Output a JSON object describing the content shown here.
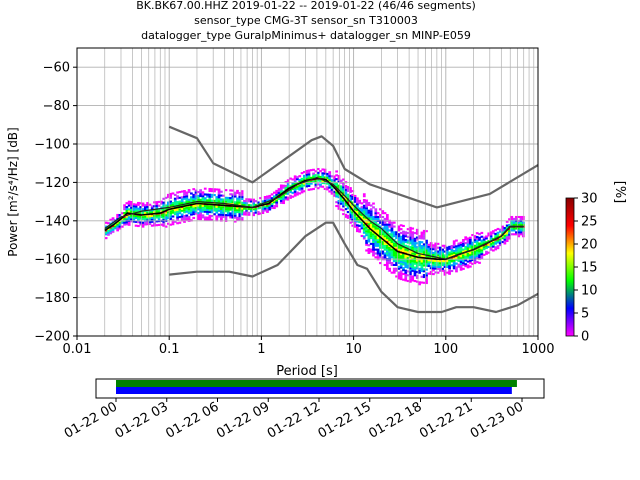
{
  "chart_data": {
    "type": "heatmap",
    "title": [
      "BK.BK67.00.HHZ   2019-01-22 -- 2019-01-22  (46/46 segments)",
      "sensor_type CMG-3T sensor_sn T310003",
      "datalogger_type GuralpMinimus+ datalogger_sn MINP-E059"
    ],
    "xlabel": "Period [s]",
    "ylabel": "Power [m²/s⁴/Hz] [dB]",
    "xscale": "log",
    "xlim": [
      0.01,
      1000
    ],
    "ylim": [
      -200,
      -50
    ],
    "xticks": [
      {
        "value": 0.01,
        "label": "0.01"
      },
      {
        "value": 0.1,
        "label": "0.1"
      },
      {
        "value": 1,
        "label": "1"
      },
      {
        "value": 10,
        "label": "10"
      },
      {
        "value": 100,
        "label": "100"
      },
      {
        "value": 1000,
        "label": "1000"
      }
    ],
    "yticks": [
      -60,
      -80,
      -100,
      -120,
      -140,
      -160,
      -180,
      -200
    ],
    "grid": true,
    "colorbar": {
      "label": "[%]",
      "range": [
        0,
        30
      ],
      "ticks": [
        0,
        5,
        10,
        15,
        20,
        25,
        30
      ],
      "colors": [
        "#ff00ff",
        "#0000ff",
        "#00ff00",
        "#ffff00",
        "#ff0000",
        "#880000"
      ]
    },
    "series": [
      {
        "color": "#666666",
        "points": [
          [
            0.1,
            -91
          ],
          [
            0.2,
            -97
          ],
          [
            0.3,
            -110
          ],
          [
            0.8,
            -120
          ],
          [
            3.5,
            -98
          ],
          [
            4.5,
            -96
          ],
          [
            6,
            -101
          ],
          [
            8,
            -113
          ],
          [
            15,
            -121
          ],
          [
            80,
            -133
          ],
          [
            300,
            -126
          ],
          [
            1000,
            -111
          ]
        ]
      },
      {
        "color": "#666666",
        "points": [
          [
            0.1,
            -168
          ],
          [
            0.2,
            -166.5
          ],
          [
            0.45,
            -166.5
          ],
          [
            0.8,
            -169
          ],
          [
            1.5,
            -163
          ],
          [
            3,
            -148
          ],
          [
            5,
            -141
          ],
          [
            6,
            -141
          ],
          [
            8,
            -152
          ],
          [
            11,
            -163
          ],
          [
            14,
            -165
          ],
          [
            20,
            -177
          ],
          [
            30,
            -185
          ],
          [
            50,
            -187.5
          ],
          [
            90,
            -187.5
          ],
          [
            130,
            -185
          ],
          [
            200,
            -185
          ],
          [
            350,
            -187.5
          ],
          [
            600,
            -184
          ],
          [
            1000,
            -178
          ]
        ]
      },
      {
        "color": "#000000",
        "points": [
          [
            0.02,
            -145
          ],
          [
            0.025,
            -142
          ],
          [
            0.03,
            -139
          ],
          [
            0.035,
            -136
          ],
          [
            0.05,
            -137
          ],
          [
            0.08,
            -136
          ],
          [
            0.1,
            -134
          ],
          [
            0.2,
            -131
          ],
          [
            0.4,
            -132
          ],
          [
            0.8,
            -133
          ],
          [
            1.2,
            -131
          ],
          [
            2,
            -123
          ],
          [
            3,
            -119
          ],
          [
            4,
            -118
          ],
          [
            5,
            -118.5
          ],
          [
            6,
            -122
          ],
          [
            8,
            -129
          ],
          [
            10,
            -135
          ],
          [
            15,
            -144
          ],
          [
            20,
            -149
          ],
          [
            30,
            -156
          ],
          [
            50,
            -159
          ],
          [
            80,
            -160
          ],
          [
            100,
            -160
          ],
          [
            150,
            -157
          ],
          [
            200,
            -155
          ],
          [
            300,
            -151
          ],
          [
            400,
            -148
          ],
          [
            500,
            -143
          ],
          [
            700,
            -143
          ]
        ]
      },
      {
        "color": "#222222",
        "points": [
          [
            0.02,
            -144
          ],
          [
            0.03,
            -138
          ],
          [
            0.05,
            -135
          ],
          [
            0.1,
            -133
          ],
          [
            0.2,
            -130
          ],
          [
            0.4,
            -131
          ],
          [
            0.8,
            -133
          ],
          [
            1.5,
            -128
          ],
          [
            2.5,
            -121
          ],
          [
            4,
            -117.5
          ],
          [
            6,
            -121
          ],
          [
            8,
            -127
          ],
          [
            10,
            -132
          ],
          [
            15,
            -140
          ],
          [
            20,
            -144
          ],
          [
            30,
            -152
          ],
          [
            50,
            -157
          ],
          [
            100,
            -160
          ],
          [
            200,
            -155
          ],
          [
            400,
            -148
          ],
          [
            500,
            -143
          ],
          [
            700,
            -143
          ]
        ]
      }
    ],
    "timeline": {
      "xtick_labels": [
        "01-22 00",
        "01-22 03",
        "01-22 06",
        "01-22 09",
        "01-22 12",
        "01-22 15",
        "01-22 18",
        "01-22 21",
        "01-23 00"
      ],
      "range_hours": [
        0,
        24
      ],
      "bars": [
        {
          "color": "#008000",
          "start": 0,
          "end": 23.7
        },
        {
          "color": "#0000ff",
          "start": 0,
          "end": 23.4
        }
      ]
    }
  }
}
